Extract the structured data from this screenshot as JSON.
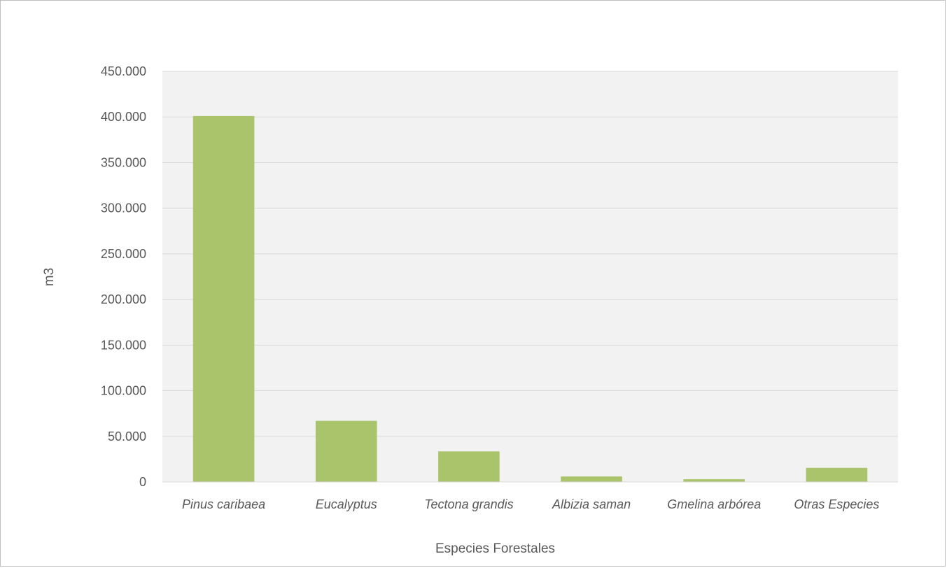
{
  "chart_data": {
    "type": "bar",
    "title": "",
    "xlabel": "Especies Forestales",
    "ylabel": "m3",
    "categories": [
      "Pinus caribaea",
      "Eucalyptus",
      "Tectona grandis",
      "Albizia saman",
      "Gmelina arbórea",
      "Otras Especies"
    ],
    "values": [
      401000,
      67000,
      33500,
      6000,
      3000,
      15500
    ],
    "ylim": [
      0,
      450000
    ],
    "yticks": [
      0,
      50000,
      100000,
      150000,
      200000,
      250000,
      300000,
      350000,
      400000,
      450000
    ],
    "ytick_labels": [
      "0",
      "50.000",
      "100.000",
      "150.000",
      "200.000",
      "250.000",
      "300.000",
      "350.000",
      "400.000",
      "450.000"
    ],
    "grid": true,
    "legend": "none",
    "colors": {
      "bar": "#a9c46b",
      "plot_background": "#f2f2f2",
      "gridline": "#d9d9d9",
      "text": "#595959"
    }
  }
}
